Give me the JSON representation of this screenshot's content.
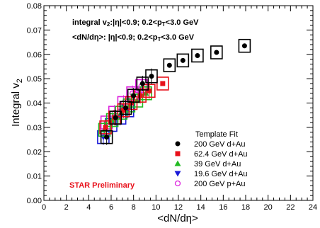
{
  "chart_data": {
    "type": "scatter",
    "xlabel": "<dN/dη>",
    "ylabel": "Integral v₂",
    "xlim": [
      0,
      24
    ],
    "ylim": [
      0,
      0.08
    ],
    "xticks": [
      "0",
      "2",
      "4",
      "6",
      "8",
      "10",
      "12",
      "14",
      "16",
      "18",
      "20",
      "22",
      "24"
    ],
    "yticks": [
      "0.00",
      "0.01",
      "0.02",
      "0.03",
      "0.04",
      "0.05",
      "0.06",
      "0.07",
      "0.08"
    ],
    "annotations": {
      "line1": "integral v2:|η|<0.9; 0.2<pT<3.0 GeV",
      "line2": "<dN/dη>: |η|<0.9; 0.2<pT<3.0 GeV",
      "preliminary": "STAR Preliminary"
    },
    "legend": {
      "title": "Template Fit",
      "placement": "bottom-right"
    },
    "series": [
      {
        "name": "200 GeV d+Au",
        "marker": "circle",
        "color": "#000000",
        "x": [
          5.6,
          6.4,
          7.3,
          8.0,
          8.8,
          9.6,
          11.2,
          12.4,
          13.7,
          15.4,
          17.9
        ],
        "y": [
          0.026,
          0.034,
          0.038,
          0.043,
          0.048,
          0.051,
          0.0555,
          0.0575,
          0.0595,
          0.0608,
          0.0635
        ]
      },
      {
        "name": "62.4 GeV d+Au",
        "marker": "square",
        "color": "#e8101a",
        "x": [
          5.5,
          6.3,
          7.1,
          7.8,
          8.6,
          9.4,
          10.6
        ],
        "y": [
          0.03,
          0.034,
          0.037,
          0.04,
          0.043,
          0.045,
          0.048
        ]
      },
      {
        "name": "39 GeV d+Au",
        "marker": "triangle-up",
        "color": "#22bb22",
        "x": [
          5.4,
          6.1,
          6.9,
          7.6,
          8.3,
          9.1
        ],
        "y": [
          0.029,
          0.033,
          0.036,
          0.039,
          0.041,
          0.044
        ]
      },
      {
        "name": "19.6 GeV d+Au",
        "marker": "triangle-down",
        "color": "#1a1ad8",
        "x": [
          5.3,
          6.0,
          6.8,
          7.5
        ],
        "y": [
          0.026,
          0.031,
          0.034,
          0.037
        ]
      },
      {
        "name": "200 GeV p+Au",
        "marker": "open-circle",
        "color": "#dd22dd",
        "x": [
          5.6,
          6.3,
          7.1,
          7.9,
          8.7
        ],
        "y": [
          0.032,
          0.036,
          0.04,
          0.044,
          0.047
        ]
      }
    ]
  }
}
